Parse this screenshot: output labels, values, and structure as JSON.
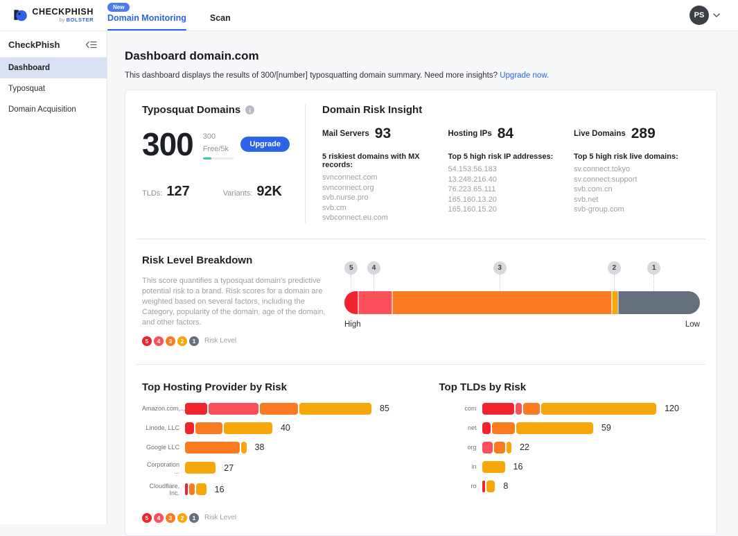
{
  "risk_colors": {
    "5": "#f0232e",
    "4": "#fb4f5c",
    "3": "#fa7b22",
    "2": "#f7a70a",
    "1": "#66707d"
  },
  "header": {
    "brand": {
      "name": "CHECKPHISH",
      "byline_prefix": "by ",
      "byline": "BOLSTER"
    },
    "tabs": [
      {
        "label": "Domain Monitoring",
        "badge": "New",
        "active": true
      },
      {
        "label": "Scan",
        "badge": "",
        "active": false
      }
    ],
    "user": {
      "initials": "PS"
    }
  },
  "sidebar": {
    "title": "CheckPhish",
    "items": [
      {
        "label": "Dashboard",
        "active": true
      },
      {
        "label": "Typosquat",
        "active": false
      },
      {
        "label": "Domain Acquisition",
        "active": false
      }
    ]
  },
  "page": {
    "title": "Dashboard domain.com",
    "subtitle": "This dashboard displays the results of 300/[number] typosquatting domain summary. Need more insights?",
    "subtitle_link": "Upgrade now."
  },
  "typosquat": {
    "title": "Typosquat Domains",
    "count": "300",
    "quota": "300 Free/5k",
    "quota_progress_pct": 28,
    "upgrade_label": "Upgrade",
    "stats": [
      {
        "label": "TLDs:",
        "value": "127"
      },
      {
        "label": "Variants:",
        "value": "92K"
      }
    ]
  },
  "risk_insight": {
    "title": "Domain Risk Insight",
    "columns": [
      {
        "label": "Mail Servers",
        "value": "93",
        "list_title": "5 riskiest domains with MX records:",
        "items": [
          "svnconnect.com",
          "svnconnect.org",
          "svb.nurse.pro",
          "svb.cm",
          "svbconnect.eu.com"
        ]
      },
      {
        "label": "Hosting IPs",
        "value": "84",
        "list_title": "Top 5 high risk IP addresses:",
        "items": [
          "54.153.56.183",
          "13.248.216.40",
          "76.223.65.111",
          "165.160.13.20",
          "165.160.15.20"
        ]
      },
      {
        "label": "Live Domains",
        "value": "289",
        "list_title": "Top 5 high risk live domains:",
        "items": [
          "sv.connect.tokyo",
          "sv.connect.support",
          "svb.com.cn",
          "svb.net",
          "svb-group.com"
        ]
      }
    ]
  },
  "risk_breakdown": {
    "title": "Risk Level Breakdown",
    "description": "This score quantifies a typosquat domain's predictive potential risk to a brand. Risk scores for a domain are weighted based on several factors, including the Category, popularity of the domain, age of the domain, and other factors.",
    "legend_levels": [
      "5",
      "4",
      "3",
      "2",
      "1"
    ],
    "legend_label": "Risk Level",
    "bar": {
      "high_label": "High",
      "low_label": "Low",
      "segments": [
        {
          "level": "5",
          "pct": 3.7
        },
        {
          "level": "4",
          "pct": 9.6
        },
        {
          "level": "3",
          "pct": 61.7
        },
        {
          "level": "2",
          "pct": 1.8
        },
        {
          "level": "1",
          "pct": 23.2
        }
      ],
      "badges": [
        {
          "level": "5",
          "left_pct": 1.8
        },
        {
          "level": "4",
          "left_pct": 8.2
        },
        {
          "level": "3",
          "left_pct": 43.6
        },
        {
          "level": "2",
          "left_pct": 75.8
        },
        {
          "level": "1",
          "left_pct": 87
        }
      ]
    }
  },
  "charts": [
    {
      "title": "Top Hosting Provider by Risk",
      "rows": [
        {
          "label": "Amazon.com,...",
          "value": "85",
          "width_pct": 79,
          "segments": [
            {
              "level": "5",
              "pct": 12
            },
            {
              "level": "4",
              "pct": 27.5
            },
            {
              "level": "3",
              "pct": 21
            },
            {
              "level": "2",
              "pct": 39.5
            }
          ]
        },
        {
          "label": "Linode, LLC",
          "value": "40",
          "width_pct": 37,
          "segments": [
            {
              "level": "5",
              "pct": 11
            },
            {
              "level": "3",
              "pct": 32
            },
            {
              "level": "2",
              "pct": 57
            }
          ]
        },
        {
          "label": "Google LLC",
          "value": "38",
          "width_pct": 26,
          "segments": [
            {
              "level": "3",
              "pct": 91
            },
            {
              "level": "2",
              "pct": 9
            }
          ]
        },
        {
          "label": "Corporation ...",
          "value": "27",
          "width_pct": 13,
          "segments": [
            {
              "level": "2",
              "pct": 100
            }
          ]
        },
        {
          "label": "Cloudflare, Inc.",
          "value": "16",
          "width_pct": 9,
          "segments": [
            {
              "level": "5",
              "pct": 12
            },
            {
              "level": "3",
              "pct": 30
            },
            {
              "level": "2",
              "pct": 58
            }
          ]
        }
      ]
    },
    {
      "title": "Top TLDs by Risk",
      "rows": [
        {
          "label": "com",
          "value": "120",
          "width_pct": 80,
          "segments": [
            {
              "level": "5",
              "pct": 19
            },
            {
              "level": "4",
              "pct": 3.5
            },
            {
              "level": "3",
              "pct": 10
            },
            {
              "level": "2",
              "pct": 67.5
            }
          ]
        },
        {
          "label": "net",
          "value": "59",
          "width_pct": 51,
          "segments": [
            {
              "level": "5",
              "pct": 8
            },
            {
              "level": "3",
              "pct": 21
            },
            {
              "level": "2",
              "pct": 71
            }
          ]
        },
        {
          "label": "org",
          "value": "22",
          "width_pct": 13.5,
          "segments": [
            {
              "level": "4",
              "pct": 39
            },
            {
              "level": "3",
              "pct": 43
            },
            {
              "level": "2",
              "pct": 18
            }
          ]
        },
        {
          "label": "in",
          "value": "16",
          "width_pct": 10.5,
          "segments": [
            {
              "level": "2",
              "pct": 100
            }
          ]
        },
        {
          "label": "ro",
          "value": "8",
          "width_pct": 6,
          "segments": [
            {
              "level": "5",
              "pct": 15
            },
            {
              "level": "2",
              "pct": 85
            }
          ]
        }
      ]
    }
  ],
  "chart_data": [
    {
      "type": "bar",
      "title": "Risk Level Breakdown",
      "orientation": "horizontal-stacked-single",
      "categories": [
        "Level 5",
        "Level 4",
        "Level 3",
        "Level 2",
        "Level 1"
      ],
      "values_pct_of_total": [
        3.7,
        9.6,
        61.7,
        1.8,
        23.2
      ],
      "axis_labels": {
        "left": "High",
        "right": "Low"
      },
      "legend": [
        "5",
        "4",
        "3",
        "2",
        "1",
        "Risk Level"
      ]
    },
    {
      "type": "bar",
      "title": "Top Hosting Provider by Risk",
      "orientation": "horizontal-stacked",
      "categories": [
        "Amazon.com,...",
        "Linode, LLC",
        "Google LLC",
        "Corporation ...",
        "Cloudflare, Inc."
      ],
      "totals": [
        85,
        40,
        38,
        27,
        16
      ],
      "series": [
        {
          "name": "Risk 5",
          "values": [
            10,
            4,
            0,
            0,
            2
          ]
        },
        {
          "name": "Risk 4",
          "values": [
            23,
            0,
            0,
            0,
            0
          ]
        },
        {
          "name": "Risk 3",
          "values": [
            18,
            13,
            35,
            0,
            5
          ]
        },
        {
          "name": "Risk 2",
          "values": [
            34,
            23,
            3,
            27,
            9
          ]
        }
      ],
      "legend": [
        "5",
        "4",
        "3",
        "2",
        "1",
        "Risk Level"
      ]
    },
    {
      "type": "bar",
      "title": "Top TLDs by Risk",
      "orientation": "horizontal-stacked",
      "categories": [
        "com",
        "net",
        "org",
        "in",
        "ro"
      ],
      "totals": [
        120,
        59,
        22,
        16,
        8
      ],
      "series": [
        {
          "name": "Risk 5",
          "values": [
            23,
            5,
            0,
            0,
            1
          ]
        },
        {
          "name": "Risk 4",
          "values": [
            4,
            0,
            9,
            0,
            0
          ]
        },
        {
          "name": "Risk 3",
          "values": [
            12,
            12,
            9,
            0,
            0
          ]
        },
        {
          "name": "Risk 2",
          "values": [
            81,
            42,
            4,
            16,
            7
          ]
        }
      ],
      "legend": [
        "5",
        "4",
        "3",
        "2",
        "1",
        "Risk Level"
      ]
    }
  ]
}
